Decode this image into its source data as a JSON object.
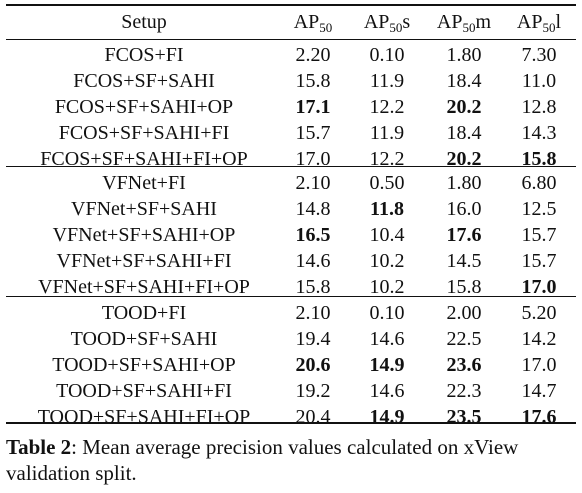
{
  "headers": {
    "setup": "Setup",
    "ap50_base": "AP",
    "ap50_sub": "50",
    "ap50s_suffix": "s",
    "ap50m_suffix": "m",
    "ap50l_suffix": "l"
  },
  "groups": [
    {
      "rows": [
        {
          "setup": "FCOS+FI",
          "ap50": "2.20",
          "ap50s": "0.10",
          "ap50m": "1.80",
          "ap50l": "7.30",
          "bold": []
        },
        {
          "setup": "FCOS+SF+SAHI",
          "ap50": "15.8",
          "ap50s": "11.9",
          "ap50m": "18.4",
          "ap50l": "11.0",
          "bold": []
        },
        {
          "setup": "FCOS+SF+SAHI+OP",
          "ap50": "17.1",
          "ap50s": "12.2",
          "ap50m": "20.2",
          "ap50l": "12.8",
          "bold": [
            "ap50",
            "ap50m"
          ]
        },
        {
          "setup": "FCOS+SF+SAHI+FI",
          "ap50": "15.7",
          "ap50s": "11.9",
          "ap50m": "18.4",
          "ap50l": "14.3",
          "bold": []
        },
        {
          "setup": "FCOS+SF+SAHI+FI+OP",
          "ap50": "17.0",
          "ap50s": "12.2",
          "ap50m": "20.2",
          "ap50l": "15.8",
          "bold": [
            "ap50m",
            "ap50l"
          ]
        }
      ]
    },
    {
      "rows": [
        {
          "setup": "VFNet+FI",
          "ap50": "2.10",
          "ap50s": "0.50",
          "ap50m": "1.80",
          "ap50l": "6.80",
          "bold": []
        },
        {
          "setup": "VFNet+SF+SAHI",
          "ap50": "14.8",
          "ap50s": "11.8",
          "ap50m": "16.0",
          "ap50l": "12.5",
          "bold": [
            "ap50s"
          ]
        },
        {
          "setup": "VFNet+SF+SAHI+OP",
          "ap50": "16.5",
          "ap50s": "10.4",
          "ap50m": "17.6",
          "ap50l": "15.7",
          "bold": [
            "ap50",
            "ap50m"
          ]
        },
        {
          "setup": "VFNet+SF+SAHI+FI",
          "ap50": "14.6",
          "ap50s": "10.2",
          "ap50m": "14.5",
          "ap50l": "15.7",
          "bold": []
        },
        {
          "setup": "VFNet+SF+SAHI+FI+OP",
          "ap50": "15.8",
          "ap50s": "10.2",
          "ap50m": "15.8",
          "ap50l": "17.0",
          "bold": [
            "ap50l"
          ]
        }
      ]
    },
    {
      "rows": [
        {
          "setup": "TOOD+FI",
          "ap50": "2.10",
          "ap50s": "0.10",
          "ap50m": "2.00",
          "ap50l": "5.20",
          "bold": []
        },
        {
          "setup": "TOOD+SF+SAHI",
          "ap50": "19.4",
          "ap50s": "14.6",
          "ap50m": "22.5",
          "ap50l": "14.2",
          "bold": []
        },
        {
          "setup": "TOOD+SF+SAHI+OP",
          "ap50": "20.6",
          "ap50s": "14.9",
          "ap50m": "23.6",
          "ap50l": "17.0",
          "bold": [
            "ap50",
            "ap50s",
            "ap50m"
          ]
        },
        {
          "setup": "TOOD+SF+SAHI+FI",
          "ap50": "19.2",
          "ap50s": "14.6",
          "ap50m": "22.3",
          "ap50l": "14.7",
          "bold": []
        },
        {
          "setup": "TOOD+SF+SAHI+FI+OP",
          "ap50": "20.4",
          "ap50s": "14.9",
          "ap50m": "23.5",
          "ap50l": "17.6",
          "bold": [
            "ap50s",
            "ap50m",
            "ap50l"
          ]
        }
      ]
    }
  ],
  "caption": {
    "label": "Table 2",
    "text": ": Mean average precision values calculated on xView validation split."
  }
}
